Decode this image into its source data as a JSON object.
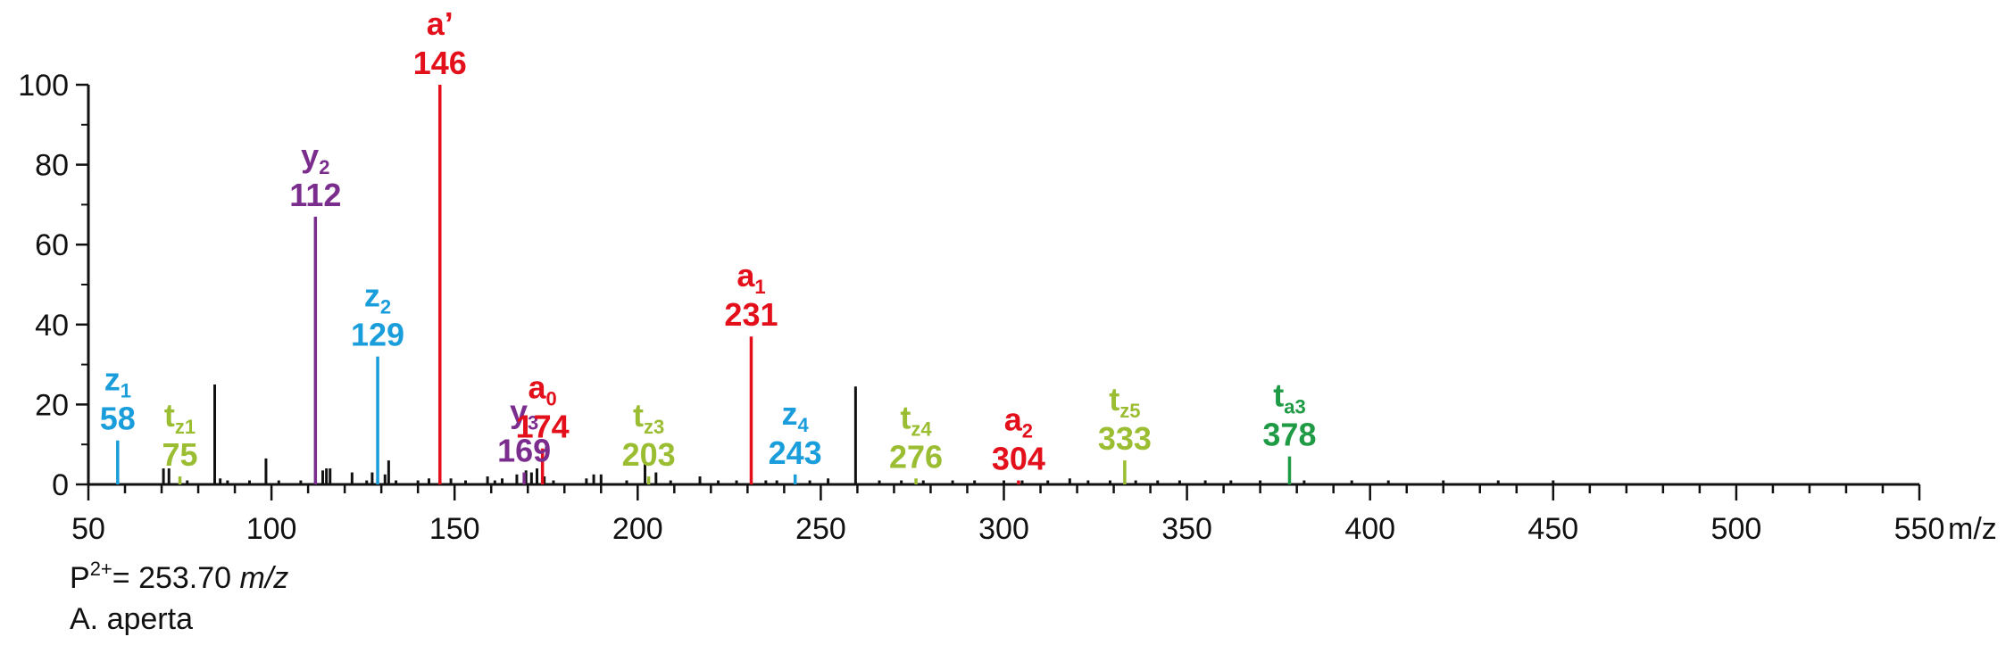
{
  "chart_data": {
    "type": "bar",
    "xlim": [
      50,
      550
    ],
    "ylim": [
      0,
      100
    ],
    "x_ticks": [
      50,
      100,
      150,
      200,
      250,
      300,
      350,
      400,
      450,
      500,
      550
    ],
    "y_ticks": [
      0,
      20,
      40,
      60,
      80,
      100
    ],
    "x_unit": "m/z",
    "grid": false,
    "colors": {
      "black": "#111111",
      "red": "#e3101b",
      "purple": "#7b2d8e",
      "cyan": "#1a9ddb",
      "lime": "#9bbd32",
      "green": "#1f9a45"
    },
    "background_peaks": [
      [
        70.5,
        4
      ],
      [
        72,
        4
      ],
      [
        77,
        1
      ],
      [
        84.5,
        25
      ],
      [
        86,
        1.5
      ],
      [
        88,
        1
      ],
      [
        94,
        1
      ],
      [
        98.5,
        6.5
      ],
      [
        102,
        1
      ],
      [
        108,
        1
      ],
      [
        114,
        3.5
      ],
      [
        115,
        4
      ],
      [
        116,
        4
      ],
      [
        122,
        3
      ],
      [
        126,
        1
      ],
      [
        127.5,
        3
      ],
      [
        131,
        2.5
      ],
      [
        132,
        6
      ],
      [
        134,
        1
      ],
      [
        140,
        1
      ],
      [
        143,
        1.5
      ],
      [
        149,
        1.5
      ],
      [
        153,
        1
      ],
      [
        159,
        2
      ],
      [
        161,
        1
      ],
      [
        163,
        1.5
      ],
      [
        167,
        2.5
      ],
      [
        169.5,
        3.5
      ],
      [
        171,
        3
      ],
      [
        172.5,
        4
      ],
      [
        174.5,
        2
      ],
      [
        177,
        1
      ],
      [
        186,
        1.5
      ],
      [
        188,
        2.5
      ],
      [
        190,
        2.5
      ],
      [
        197,
        1
      ],
      [
        202,
        5.5
      ],
      [
        205,
        3
      ],
      [
        209,
        1
      ],
      [
        217,
        2
      ],
      [
        222,
        1
      ],
      [
        227,
        1
      ],
      [
        235,
        1
      ],
      [
        238,
        1
      ],
      [
        247,
        1
      ],
      [
        252,
        1.5
      ],
      [
        259.5,
        24.5
      ],
      [
        266,
        1
      ],
      [
        272,
        1
      ],
      [
        278,
        1
      ],
      [
        286,
        1
      ],
      [
        292,
        1
      ],
      [
        300,
        1
      ],
      [
        305,
        1
      ],
      [
        312,
        1
      ],
      [
        318,
        1.5
      ],
      [
        323,
        1
      ],
      [
        329,
        1
      ],
      [
        336,
        1
      ],
      [
        342,
        1
      ],
      [
        348,
        1
      ],
      [
        355,
        1
      ],
      [
        362,
        1
      ],
      [
        370,
        1
      ],
      [
        382,
        1
      ],
      [
        395,
        1
      ],
      [
        405,
        1
      ],
      [
        420,
        1
      ],
      [
        435,
        1
      ],
      [
        450,
        1
      ]
    ],
    "annotated_peaks": [
      {
        "mz": 58,
        "intensity": 11,
        "letter": "z",
        "sub": "1",
        "label": "58",
        "color": "cyan"
      },
      {
        "mz": 75,
        "intensity": 2,
        "letter": "t",
        "sub": "z1",
        "label": "75",
        "color": "lime"
      },
      {
        "mz": 112,
        "intensity": 67,
        "letter": "y",
        "sub": "2",
        "label": "112",
        "color": "purple"
      },
      {
        "mz": 129,
        "intensity": 32,
        "letter": "z",
        "sub": "2",
        "label": "129",
        "color": "cyan"
      },
      {
        "mz": 146,
        "intensity": 100,
        "letter": "a’",
        "sub": "",
        "label": "146",
        "color": "red"
      },
      {
        "mz": 169,
        "intensity": 3,
        "letter": "y",
        "sub": "3",
        "label": "169",
        "color": "purple"
      },
      {
        "mz": 174,
        "intensity": 9,
        "letter": "a",
        "sub": "0",
        "label": "174",
        "color": "red"
      },
      {
        "mz": 203,
        "intensity": 2,
        "letter": "t",
        "sub": "z3",
        "label": "203",
        "color": "lime"
      },
      {
        "mz": 231,
        "intensity": 37,
        "letter": "a",
        "sub": "1",
        "label": "231",
        "color": "red"
      },
      {
        "mz": 243,
        "intensity": 2.5,
        "letter": "z",
        "sub": "4",
        "label": "243",
        "color": "cyan"
      },
      {
        "mz": 276,
        "intensity": 1.5,
        "letter": "t",
        "sub": "z4",
        "label": "276",
        "color": "lime"
      },
      {
        "mz": 304,
        "intensity": 1,
        "letter": "a",
        "sub": "2",
        "label": "304",
        "color": "red"
      },
      {
        "mz": 333,
        "intensity": 6,
        "letter": "t",
        "sub": "z5",
        "label": "333",
        "color": "lime"
      },
      {
        "mz": 378,
        "intensity": 7,
        "letter": "t",
        "sub": "a3",
        "label": "378",
        "color": "green"
      }
    ]
  },
  "footer": {
    "precursor_prefix": "P",
    "precursor_charge": "2+",
    "precursor_value": "= 253.70 ",
    "precursor_unit": "m/z",
    "species": "A. aperta"
  }
}
